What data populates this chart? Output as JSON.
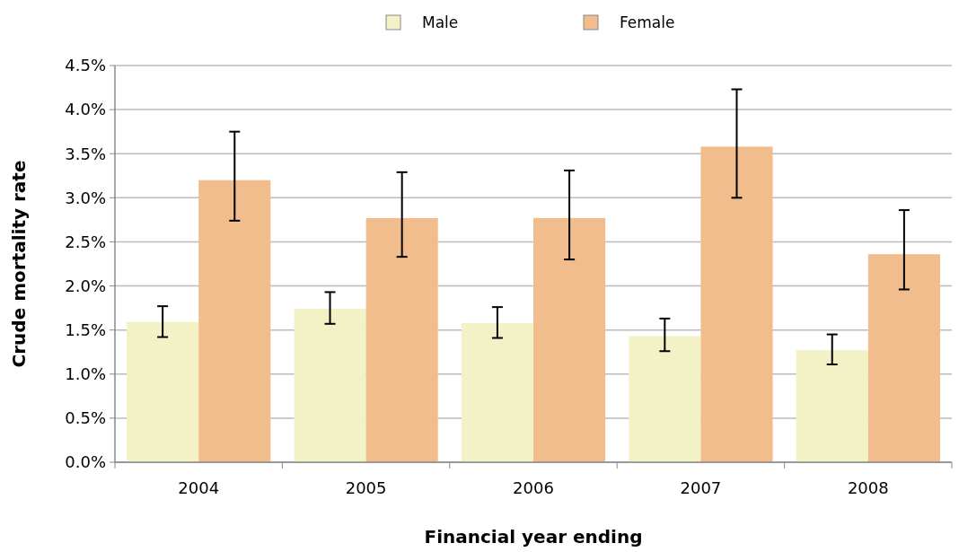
{
  "chart_data": {
    "type": "bar",
    "xlabel": "Financial year ending",
    "ylabel": "Crude mortality rate",
    "categories": [
      "2004",
      "2005",
      "2006",
      "2007",
      "2008"
    ],
    "series": [
      {
        "name": "Male",
        "color": "#f3f1c6",
        "values": [
          1.59,
          1.74,
          1.58,
          1.43,
          1.27
        ],
        "errors": [
          [
            1.42,
            1.77
          ],
          [
            1.57,
            1.93
          ],
          [
            1.41,
            1.76
          ],
          [
            1.26,
            1.63
          ],
          [
            1.11,
            1.45
          ]
        ]
      },
      {
        "name": "Female",
        "color": "#f2bd8c",
        "values": [
          3.2,
          2.77,
          2.77,
          3.58,
          2.36
        ],
        "errors": [
          [
            2.74,
            3.75
          ],
          [
            2.33,
            3.29
          ],
          [
            2.3,
            3.31
          ],
          [
            3.0,
            4.23
          ],
          [
            1.96,
            2.86
          ]
        ]
      }
    ],
    "ylim": [
      0,
      4.5
    ],
    "yticks": [
      {
        "value": 0,
        "label": "0.0%"
      },
      {
        "value": 0.5,
        "label": "0.5%"
      },
      {
        "value": 1,
        "label": "1.0%"
      },
      {
        "value": 1.5,
        "label": "1.5%"
      },
      {
        "value": 2,
        "label": "2.0%"
      },
      {
        "value": 2.5,
        "label": "2.5%"
      },
      {
        "value": 3,
        "label": "3.0%"
      },
      {
        "value": 3.5,
        "label": "3.5%"
      },
      {
        "value": 4,
        "label": "4.0%"
      },
      {
        "value": 4.5,
        "label": "4.5%"
      }
    ],
    "grid": "y",
    "legend": "top"
  }
}
